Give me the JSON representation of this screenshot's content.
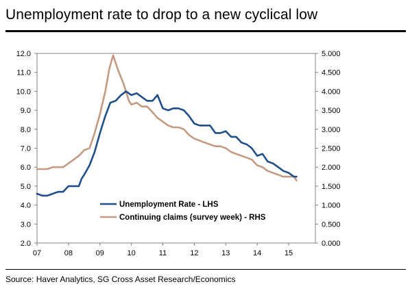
{
  "page": {
    "title": "Unemployment rate to drop to a new cyclical low",
    "source": "Source: Haver Analytics, SG Cross Asset Research/Economics"
  },
  "chart_data": {
    "type": "line",
    "title": "Unemployment rate to drop to a new cyclical low",
    "x_range": [
      2007.0,
      2015.85
    ],
    "x_ticks": [
      "07",
      "08",
      "09",
      "10",
      "11",
      "12",
      "13",
      "14",
      "15"
    ],
    "y_left": {
      "min": 2.0,
      "max": 12.0,
      "ticks": [
        "2.0",
        "3.0",
        "4.0",
        "5.0",
        "6.0",
        "7.0",
        "8.0",
        "9.0",
        "10.0",
        "11.0",
        "12.0"
      ]
    },
    "y_right": {
      "min": 0.0,
      "max": 5.0,
      "ticks": [
        "0.000",
        "0.500",
        "1.000",
        "1.500",
        "2.000",
        "2.500",
        "3.000",
        "3.500",
        "4.000",
        "4.500",
        "5.000"
      ]
    },
    "legend_position": "center-left",
    "series": [
      {
        "name": "Unemployment Rate - LHS",
        "axis": "left",
        "color": "#1f4e89",
        "x": [
          2007.0,
          2007.17,
          2007.33,
          2007.5,
          2007.67,
          2007.83,
          2008.0,
          2008.17,
          2008.33,
          2008.42,
          2008.5,
          2008.67,
          2008.83,
          2009.0,
          2009.17,
          2009.33,
          2009.5,
          2009.67,
          2009.83,
          2010.0,
          2010.17,
          2010.33,
          2010.5,
          2010.67,
          2010.83,
          2011.0,
          2011.17,
          2011.33,
          2011.5,
          2011.67,
          2011.83,
          2012.0,
          2012.17,
          2012.33,
          2012.5,
          2012.67,
          2012.83,
          2013.0,
          2013.17,
          2013.33,
          2013.5,
          2013.67,
          2013.83,
          2014.0,
          2014.17,
          2014.33,
          2014.5,
          2014.67,
          2014.83,
          2015.0,
          2015.17,
          2015.25
        ],
        "values": [
          4.6,
          4.5,
          4.5,
          4.6,
          4.7,
          4.7,
          5.0,
          5.0,
          5.0,
          5.4,
          5.6,
          6.1,
          6.8,
          7.8,
          8.7,
          9.4,
          9.5,
          9.8,
          10.0,
          9.8,
          9.9,
          9.7,
          9.5,
          9.5,
          9.8,
          9.1,
          9.0,
          9.1,
          9.1,
          9.0,
          8.7,
          8.3,
          8.2,
          8.2,
          8.2,
          7.8,
          7.8,
          7.9,
          7.6,
          7.6,
          7.3,
          7.2,
          7.0,
          6.6,
          6.7,
          6.3,
          6.2,
          6.0,
          5.8,
          5.7,
          5.5,
          5.5
        ]
      },
      {
        "name": "Continuing claims (survey week) - RHS",
        "axis": "right",
        "color": "#c49a80",
        "x": [
          2007.0,
          2007.17,
          2007.33,
          2007.5,
          2007.67,
          2007.83,
          2008.0,
          2008.17,
          2008.33,
          2008.5,
          2008.67,
          2008.83,
          2009.0,
          2009.17,
          2009.3,
          2009.42,
          2009.58,
          2009.75,
          2009.92,
          2010.0,
          2010.17,
          2010.33,
          2010.5,
          2010.67,
          2010.83,
          2011.0,
          2011.17,
          2011.33,
          2011.5,
          2011.67,
          2011.83,
          2012.0,
          2012.17,
          2012.33,
          2012.5,
          2012.67,
          2012.83,
          2013.0,
          2013.17,
          2013.33,
          2013.5,
          2013.67,
          2013.83,
          2014.0,
          2014.17,
          2014.33,
          2014.5,
          2014.67,
          2014.83,
          2015.0,
          2015.17,
          2015.25
        ],
        "values": [
          1.95,
          1.95,
          1.95,
          2.0,
          2.0,
          2.0,
          2.1,
          2.2,
          2.3,
          2.45,
          2.5,
          2.9,
          3.4,
          4.0,
          4.6,
          4.95,
          4.55,
          4.2,
          3.75,
          3.65,
          3.7,
          3.6,
          3.6,
          3.45,
          3.3,
          3.2,
          3.1,
          3.05,
          3.05,
          3.0,
          2.85,
          2.75,
          2.7,
          2.65,
          2.6,
          2.55,
          2.55,
          2.5,
          2.4,
          2.35,
          2.3,
          2.25,
          2.2,
          2.05,
          2.0,
          1.9,
          1.85,
          1.8,
          1.75,
          1.75,
          1.75,
          1.65
        ]
      }
    ]
  }
}
